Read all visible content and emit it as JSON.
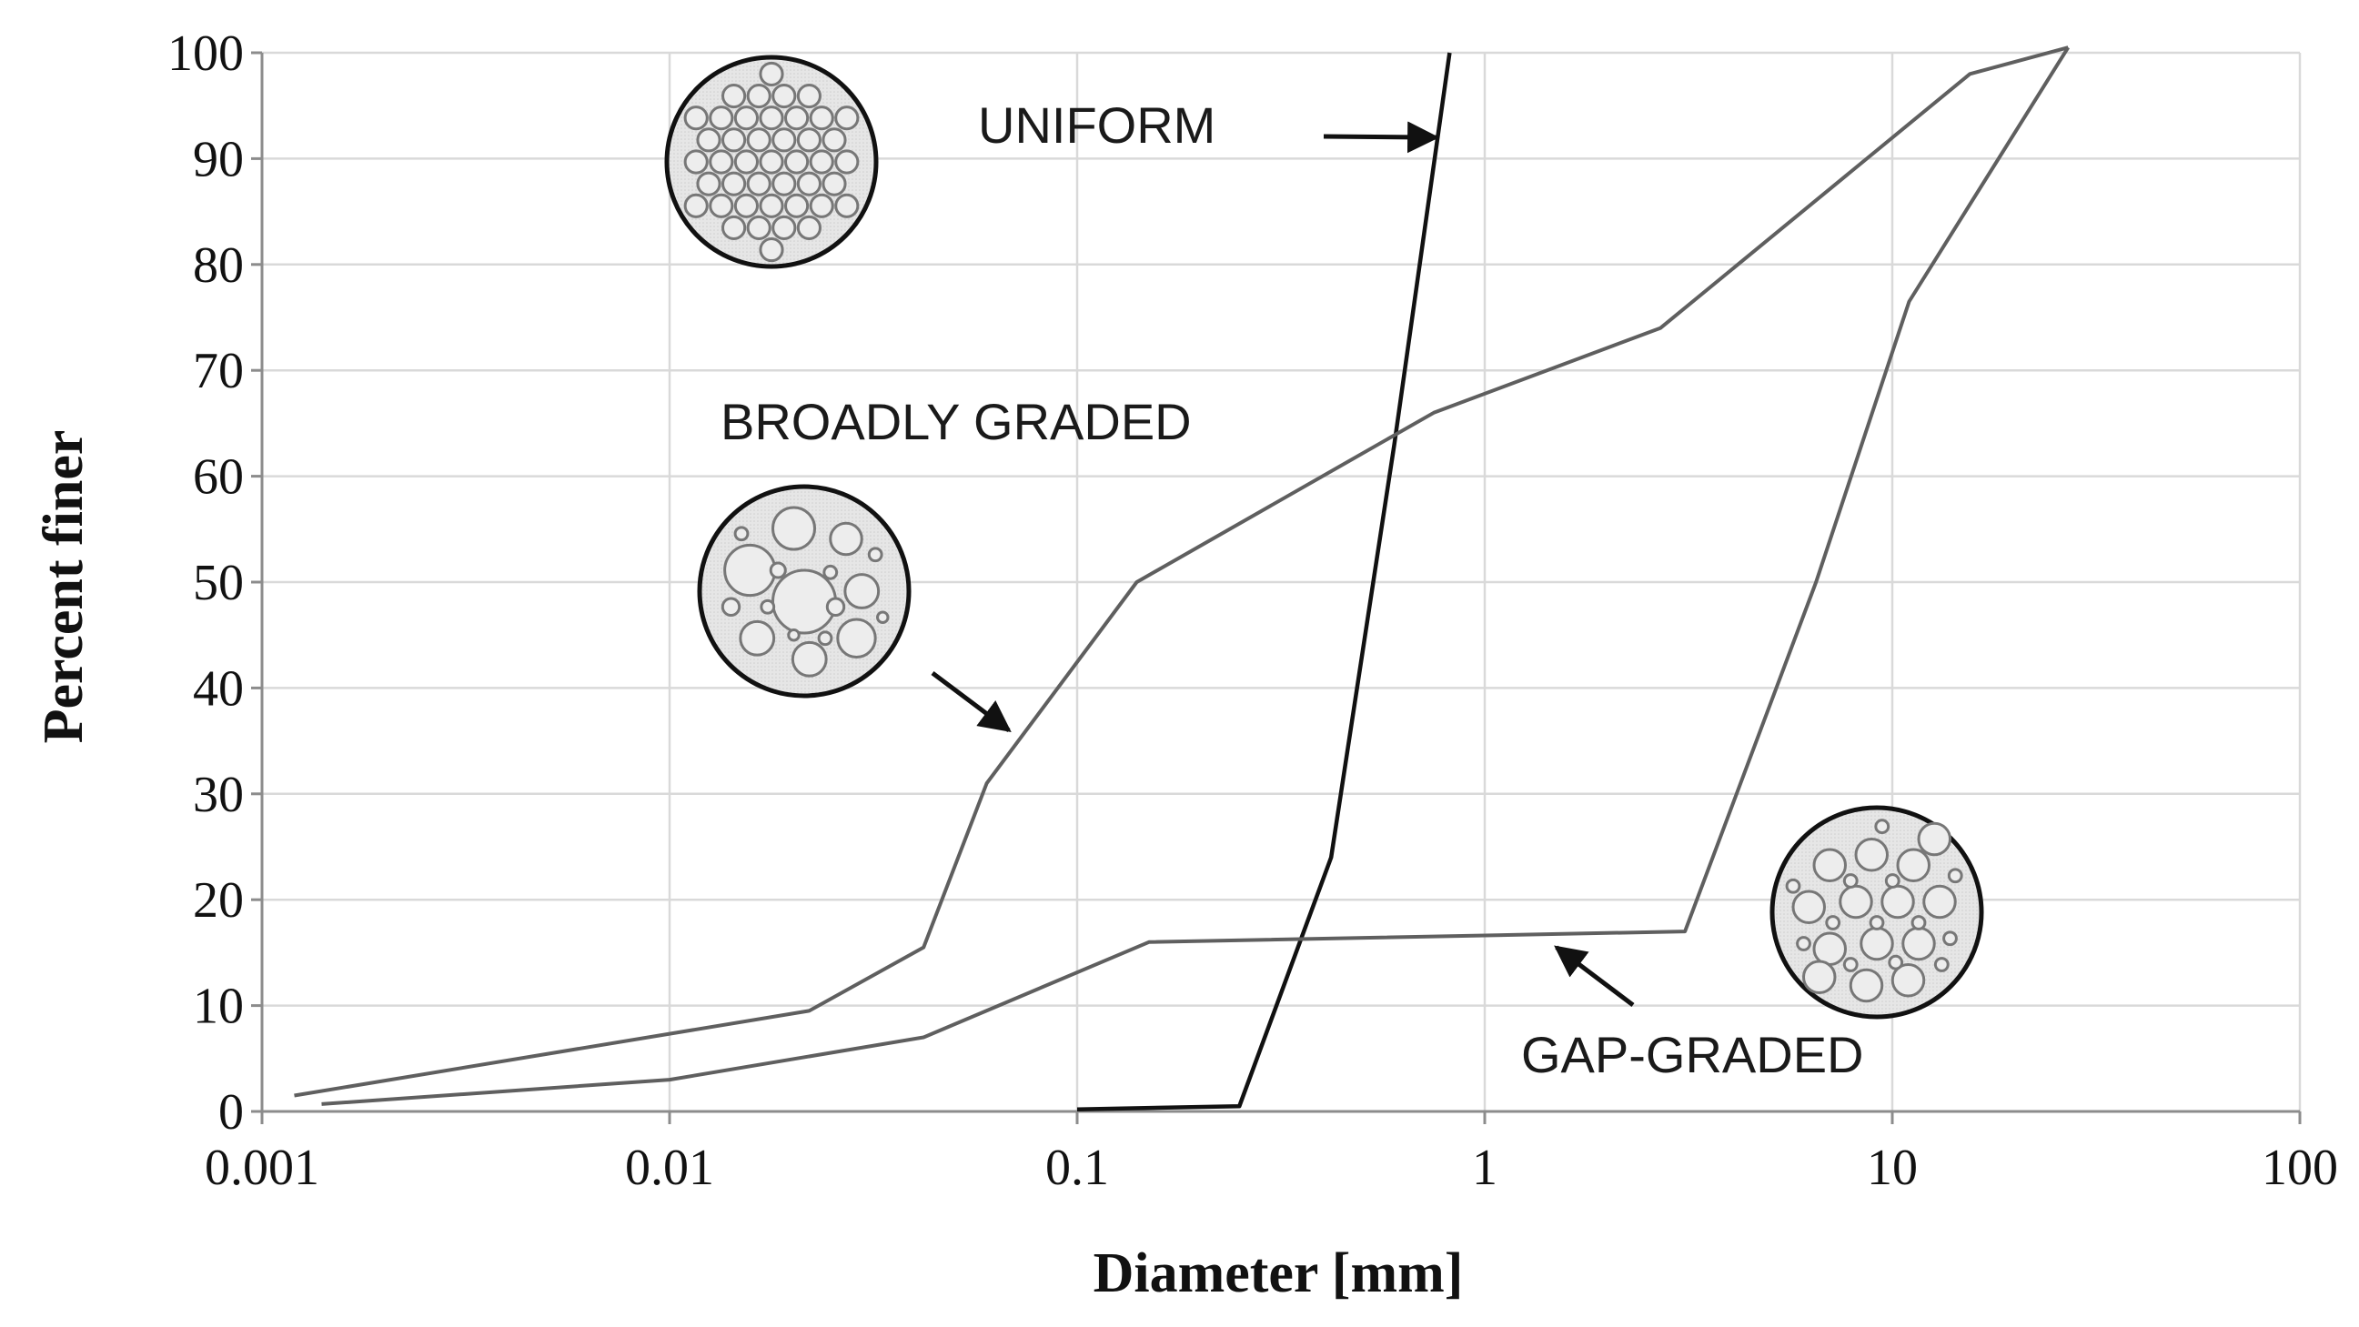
{
  "chart_data": {
    "type": "line",
    "title": "",
    "xlabel": "Diameter [mm]",
    "ylabel": "Percent finer",
    "xscale": "log",
    "xlim": [
      0.001,
      100
    ],
    "ylim": [
      0,
      100
    ],
    "x_ticks": [
      "0.001",
      "0.01",
      "0.1",
      "1",
      "10",
      "100"
    ],
    "y_ticks": [
      "0",
      "10",
      "20",
      "30",
      "40",
      "50",
      "60",
      "70",
      "80",
      "90",
      "100"
    ],
    "grid": true,
    "legend": "none",
    "series": [
      {
        "name": "UNIFORM",
        "color": "#111111",
        "points": [
          [
            0.1,
            0.2
          ],
          [
            0.25,
            0.5
          ],
          [
            0.42,
            24
          ],
          [
            0.6,
            63
          ],
          [
            0.82,
            100
          ]
        ]
      },
      {
        "name": "BROADLY GRADED",
        "color": "#5f5f5f",
        "points": [
          [
            0.0012,
            1.5
          ],
          [
            0.022,
            9.5
          ],
          [
            0.042,
            15.5
          ],
          [
            0.06,
            31
          ],
          [
            0.14,
            50
          ],
          [
            0.75,
            66
          ],
          [
            2.7,
            74
          ],
          [
            15.5,
            98
          ],
          [
            27,
            100.5
          ]
        ]
      },
      {
        "name": "GAP-GRADED",
        "color": "#5f5f5f",
        "points": [
          [
            0.0014,
            0.7
          ],
          [
            0.01,
            3
          ],
          [
            0.042,
            7
          ],
          [
            0.15,
            16
          ],
          [
            3.1,
            17
          ],
          [
            6.5,
            50
          ],
          [
            11,
            76.5
          ],
          [
            27,
            100.5
          ]
        ]
      }
    ],
    "annotations": [
      {
        "text": "UNIFORM",
        "arrow_to": [
          0.76,
          92
        ]
      },
      {
        "text": "BROADLY GRADED",
        "arrow_to": [
          0.068,
          36
        ]
      },
      {
        "text": "GAP-GRADED",
        "arrow_to": [
          1.5,
          15.5
        ]
      }
    ]
  }
}
